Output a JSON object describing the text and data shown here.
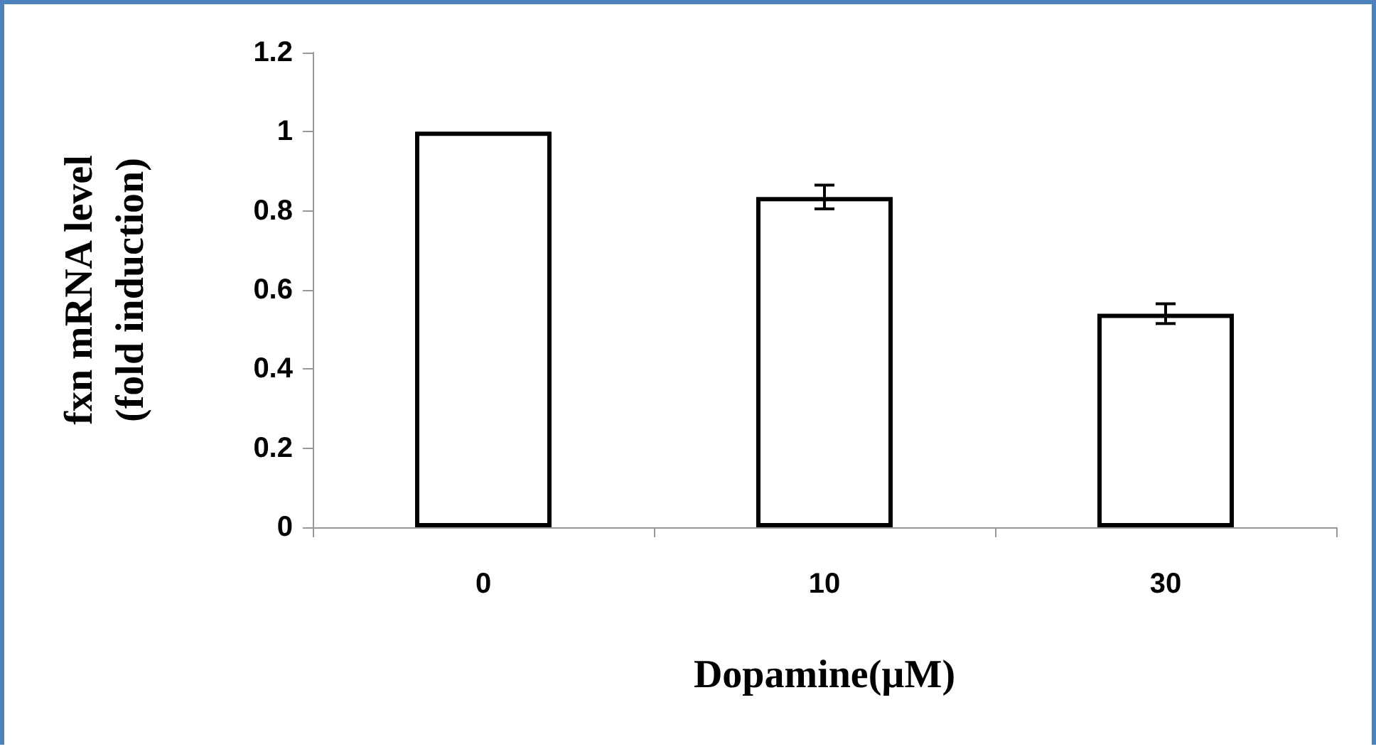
{
  "chart_data": {
    "type": "bar",
    "xlabel": "Dopamine(µM)",
    "ylabel": "fxn mRNA level\n(fold induction)",
    "categories": [
      "0",
      "10",
      "30"
    ],
    "values": [
      1.0,
      0.835,
      0.54
    ],
    "errors": [
      null,
      0.03,
      0.025
    ],
    "color": "#ffffff",
    "ylim": [
      0,
      1.2
    ],
    "yticks": [
      0,
      0.2,
      0.4,
      0.6,
      0.8,
      1,
      1.2
    ],
    "grid": false
  }
}
